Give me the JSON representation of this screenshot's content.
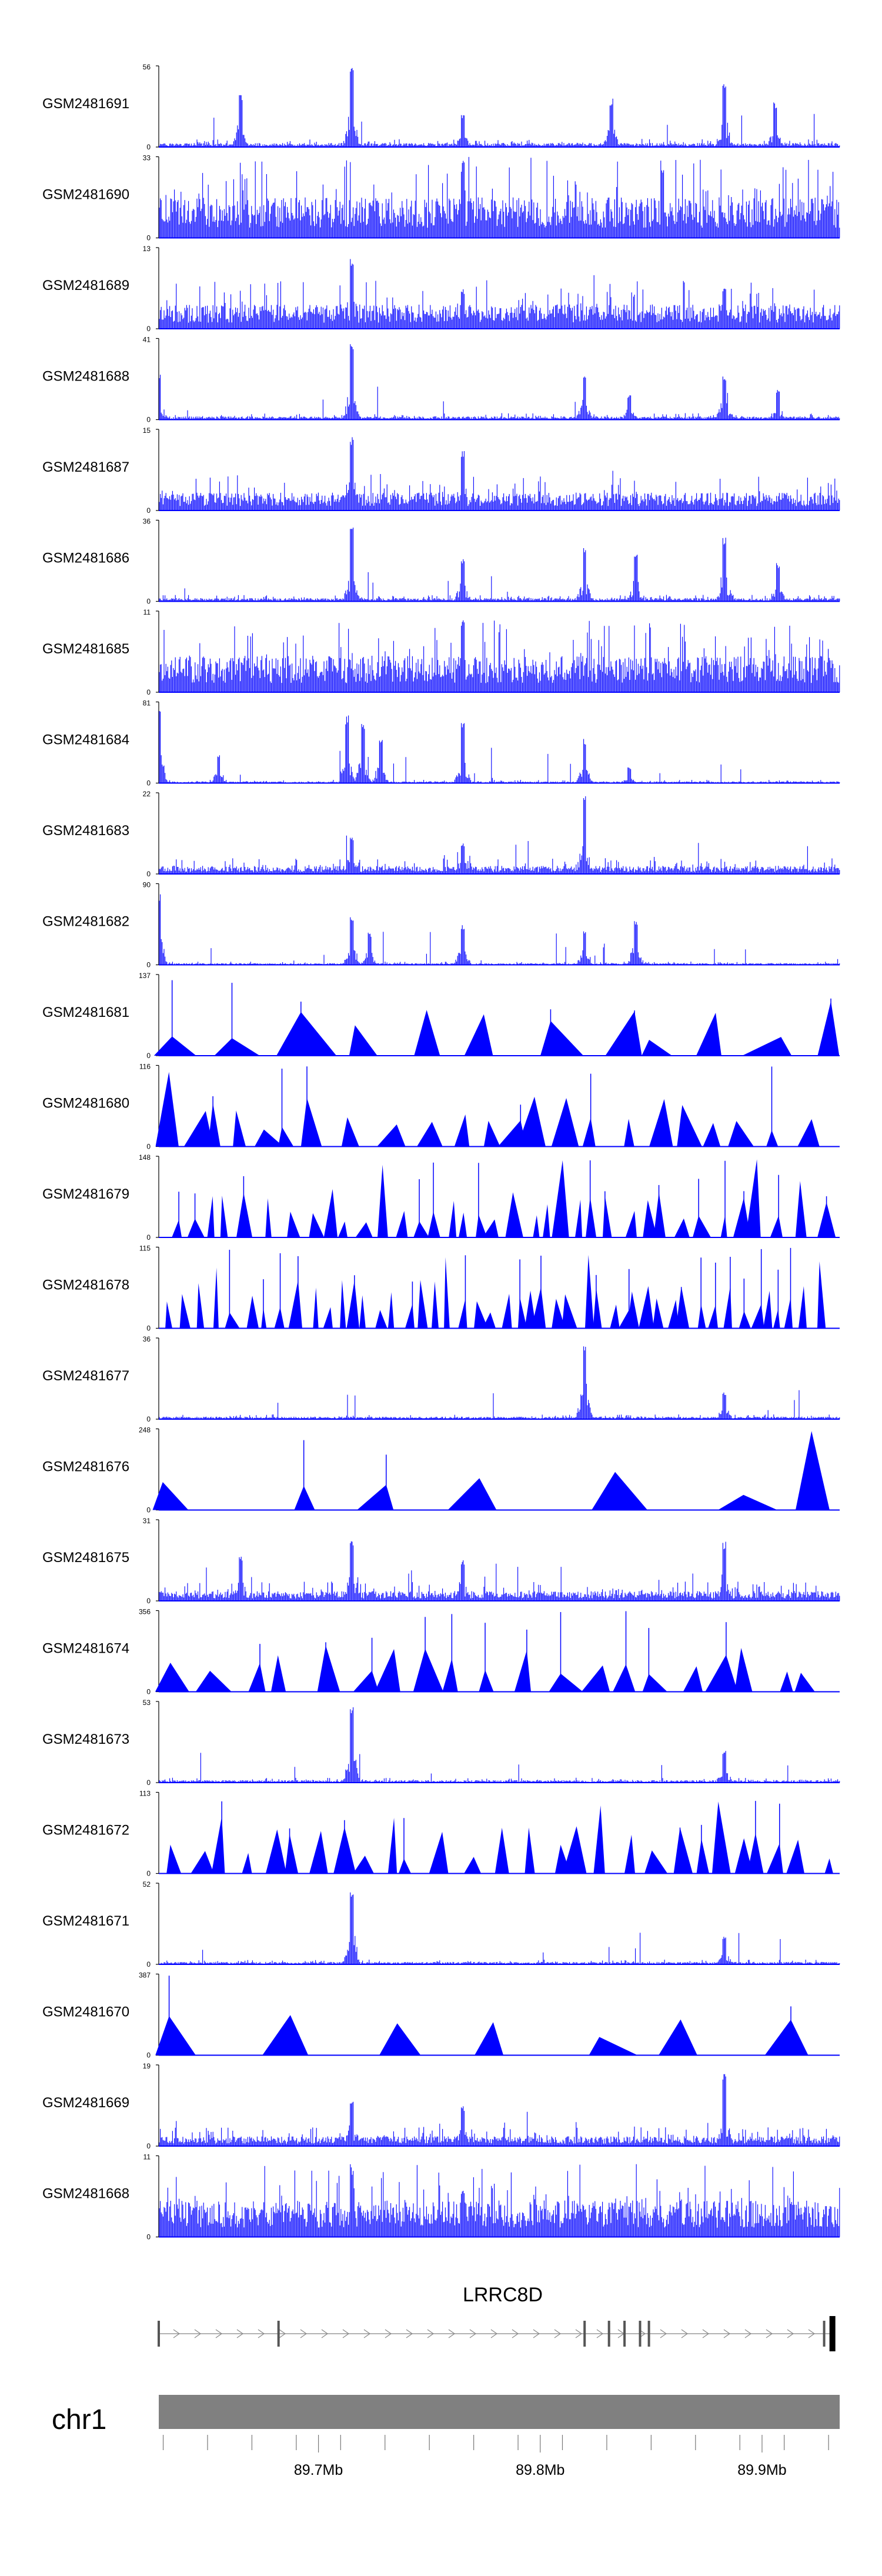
{
  "chart_data": {
    "type": "area",
    "genome": {
      "chromosome": "chr1",
      "gene": "LRRC8D",
      "x_tick_labels": [
        "89.7Mb",
        "89.8Mb",
        "89.9Mb"
      ],
      "x_ticks_mb": [
        89.7,
        89.8,
        89.9
      ],
      "xlim_mb": [
        89.628,
        89.935
      ],
      "gene_model": {
        "start_mb": 89.628,
        "end_mb": 89.932,
        "strand": "+",
        "exons_mb": [
          89.628,
          89.682,
          89.82,
          89.831,
          89.838,
          89.845,
          89.849,
          89.928,
          89.932
        ]
      }
    },
    "tracks": [
      {
        "name": "GSM2481691",
        "ymax_label": "56",
        "ymin_label": "0",
        "ymax": 56,
        "style": "dense",
        "base": 0.05,
        "seed": 91,
        "peaks": [
          {
            "mb": 89.715,
            "h": 1.0
          },
          {
            "mb": 89.883,
            "h": 0.82
          },
          {
            "mb": 89.832,
            "h": 0.6
          },
          {
            "mb": 89.665,
            "h": 0.65
          },
          {
            "mb": 89.765,
            "h": 0.42
          },
          {
            "mb": 89.906,
            "h": 0.55
          }
        ]
      },
      {
        "name": "GSM2481690",
        "ymax_label": "33",
        "ymin_label": "0",
        "ymax": 33,
        "style": "dense",
        "base": 0.5,
        "seed": 90,
        "peaks": [
          {
            "mb": 89.765,
            "h": 0.95
          },
          {
            "mb": 89.855,
            "h": 0.9
          }
        ]
      },
      {
        "name": "GSM2481689",
        "ymax_label": "13",
        "ymin_label": "0",
        "ymax": 13,
        "style": "dense",
        "base": 0.3,
        "seed": 89,
        "peaks": [
          {
            "mb": 89.715,
            "h": 0.9
          },
          {
            "mb": 89.765,
            "h": 0.5
          },
          {
            "mb": 89.883,
            "h": 0.5
          }
        ]
      },
      {
        "name": "GSM2481688",
        "ymax_label": "41",
        "ymin_label": "0",
        "ymax": 41,
        "style": "dense",
        "base": 0.04,
        "seed": 88,
        "peaks": [
          {
            "mb": 89.715,
            "h": 0.95
          },
          {
            "mb": 89.82,
            "h": 0.6
          },
          {
            "mb": 89.883,
            "h": 0.55
          },
          {
            "mb": 89.907,
            "h": 0.38
          },
          {
            "mb": 89.628,
            "h": 0.6
          },
          {
            "mb": 89.84,
            "h": 0.3
          }
        ]
      },
      {
        "name": "GSM2481687",
        "ymax_label": "15",
        "ymin_label": "0",
        "ymax": 15,
        "style": "dense",
        "base": 0.22,
        "seed": 87,
        "peaks": [
          {
            "mb": 89.715,
            "h": 0.95
          },
          {
            "mb": 89.765,
            "h": 0.75
          }
        ]
      },
      {
        "name": "GSM2481686",
        "ymax_label": "36",
        "ymin_label": "0",
        "ymax": 36,
        "style": "dense",
        "base": 0.04,
        "seed": 86,
        "peaks": [
          {
            "mb": 89.715,
            "h": 0.95
          },
          {
            "mb": 89.82,
            "h": 0.7
          },
          {
            "mb": 89.883,
            "h": 0.8
          },
          {
            "mb": 89.907,
            "h": 0.48
          },
          {
            "mb": 89.843,
            "h": 0.6
          },
          {
            "mb": 89.765,
            "h": 0.52
          }
        ]
      },
      {
        "name": "GSM2481685",
        "ymax_label": "11",
        "ymin_label": "0",
        "ymax": 11,
        "style": "dense",
        "base": 0.45,
        "seed": 85,
        "peaks": [
          {
            "mb": 89.765,
            "h": 0.95
          }
        ]
      },
      {
        "name": "GSM2481684",
        "ymax_label": "81",
        "ymin_label": "0",
        "ymax": 81,
        "style": "dense",
        "base": 0.02,
        "seed": 84,
        "peaks": [
          {
            "mb": 89.713,
            "h": 0.85
          },
          {
            "mb": 89.72,
            "h": 0.75
          },
          {
            "mb": 89.728,
            "h": 0.55
          },
          {
            "mb": 89.765,
            "h": 0.78
          },
          {
            "mb": 89.82,
            "h": 0.55
          },
          {
            "mb": 89.628,
            "h": 0.95
          },
          {
            "mb": 89.655,
            "h": 0.35
          },
          {
            "mb": 89.84,
            "h": 0.2
          }
        ]
      },
      {
        "name": "GSM2481683",
        "ymax_label": "22",
        "ymin_label": "0",
        "ymax": 22,
        "style": "dense",
        "base": 0.1,
        "seed": 83,
        "peaks": [
          {
            "mb": 89.82,
            "h": 1.0
          },
          {
            "mb": 89.715,
            "h": 0.45
          },
          {
            "mb": 89.765,
            "h": 0.4
          }
        ]
      },
      {
        "name": "GSM2481682",
        "ymax_label": "90",
        "ymin_label": "0",
        "ymax": 90,
        "style": "dense",
        "base": 0.02,
        "seed": 82,
        "peaks": [
          {
            "mb": 89.628,
            "h": 0.9
          },
          {
            "mb": 89.715,
            "h": 0.6
          },
          {
            "mb": 89.723,
            "h": 0.4
          },
          {
            "mb": 89.765,
            "h": 0.5
          },
          {
            "mb": 89.82,
            "h": 0.45
          },
          {
            "mb": 89.843,
            "h": 0.55
          }
        ]
      },
      {
        "name": "GSM2481681",
        "ymax_label": "137",
        "ymin_label": "0",
        "ymax": 137,
        "style": "sparse",
        "seed": 81,
        "density": 12
      },
      {
        "name": "GSM2481680",
        "ymax_label": "116",
        "ymin_label": "0",
        "ymax": 116,
        "style": "sparse",
        "seed": 80,
        "density": 24
      },
      {
        "name": "GSM2481679",
        "ymax_label": "148",
        "ymin_label": "0",
        "ymax": 148,
        "style": "sparse",
        "seed": 79,
        "density": 40
      },
      {
        "name": "GSM2481678",
        "ymax_label": "115",
        "ymin_label": "0",
        "ymax": 115,
        "style": "sparse",
        "seed": 78,
        "density": 48
      },
      {
        "name": "GSM2481677",
        "ymax_label": "36",
        "ymin_label": "0",
        "ymax": 36,
        "style": "dense",
        "base": 0.03,
        "seed": 77,
        "peaks": [
          {
            "mb": 89.82,
            "h": 0.95
          },
          {
            "mb": 89.883,
            "h": 0.35
          }
        ]
      },
      {
        "name": "GSM2481676",
        "ymax_label": "248",
        "ymin_label": "0",
        "ymax": 248,
        "style": "sparse",
        "seed": 76,
        "density": 6
      },
      {
        "name": "GSM2481675",
        "ymax_label": "31",
        "ymin_label": "0",
        "ymax": 31,
        "style": "dense",
        "base": 0.12,
        "seed": 75,
        "peaks": [
          {
            "mb": 89.715,
            "h": 0.8
          },
          {
            "mb": 89.883,
            "h": 0.75
          },
          {
            "mb": 89.765,
            "h": 0.5
          },
          {
            "mb": 89.665,
            "h": 0.55
          }
        ]
      },
      {
        "name": "GSM2481674",
        "ymax_label": "356",
        "ymin_label": "0",
        "ymax": 356,
        "style": "sparse",
        "seed": 74,
        "density": 20
      },
      {
        "name": "GSM2481673",
        "ymax_label": "53",
        "ymin_label": "0",
        "ymax": 53,
        "style": "dense",
        "base": 0.03,
        "seed": 73,
        "peaks": [
          {
            "mb": 89.715,
            "h": 0.95
          },
          {
            "mb": 89.883,
            "h": 0.4
          }
        ]
      },
      {
        "name": "GSM2481672",
        "ymax_label": "113",
        "ymin_label": "0",
        "ymax": 113,
        "style": "sparse",
        "seed": 72,
        "density": 30
      },
      {
        "name": "GSM2481671",
        "ymax_label": "52",
        "ymin_label": "0",
        "ymax": 52,
        "style": "dense",
        "base": 0.03,
        "seed": 71,
        "peaks": [
          {
            "mb": 89.715,
            "h": 0.95
          },
          {
            "mb": 89.883,
            "h": 0.35
          }
        ]
      },
      {
        "name": "GSM2481670",
        "ymax_label": "387",
        "ymin_label": "0",
        "ymax": 387,
        "style": "sparse",
        "seed": 70,
        "density": 8
      },
      {
        "name": "GSM2481669",
        "ymax_label": "19",
        "ymin_label": "0",
        "ymax": 19,
        "style": "dense",
        "base": 0.12,
        "seed": 69,
        "peaks": [
          {
            "mb": 89.883,
            "h": 0.95
          },
          {
            "mb": 89.715,
            "h": 0.6
          },
          {
            "mb": 89.765,
            "h": 0.5
          }
        ]
      },
      {
        "name": "GSM2481668",
        "ymax_label": "11",
        "ymin_label": "0",
        "ymax": 11,
        "style": "dense",
        "base": 0.45,
        "seed": 68,
        "peaks": [
          {
            "mb": 89.715,
            "h": 0.9
          },
          {
            "mb": 89.765,
            "h": 0.6
          }
        ]
      }
    ],
    "colors": {
      "signal": "#0000ff",
      "axis": "#000000",
      "ideogram": "#808080",
      "label": "#000000"
    }
  }
}
